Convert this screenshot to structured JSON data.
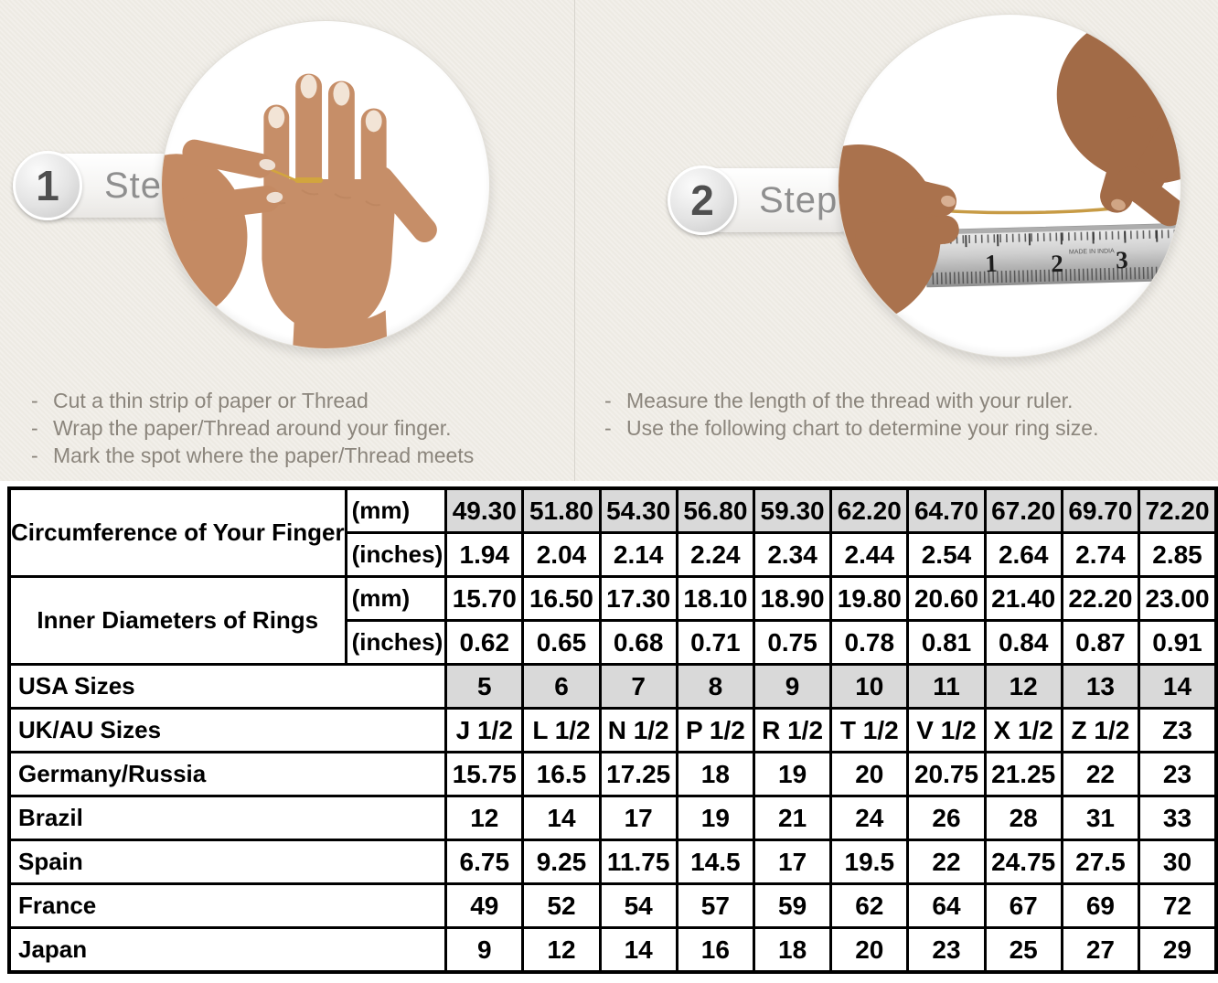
{
  "ui": {
    "bullet": "-"
  },
  "colors": {
    "panel_background": "#edeae3",
    "table_shaded_cell": "#d9d9d9",
    "thread_gold": "#c79b45",
    "table_border": "#000000",
    "instruction_text": "#8b857c"
  },
  "steps": [
    {
      "number": "1",
      "label": "Step",
      "instructions": [
        "Cut a thin strip of paper or Thread",
        "Wrap the paper/Thread around your finger.",
        "Mark the spot where the paper/Thread meets"
      ]
    },
    {
      "number": "2",
      "label": "Step",
      "instructions": [
        "Measure the length of the thread with your ruler.",
        "Use the following chart to determine your ring size."
      ],
      "ruler_numbers": [
        "1",
        "2",
        "3"
      ],
      "ruler_small_text": "MADE IN INDIA"
    }
  ],
  "table": {
    "groups": [
      {
        "label": "Circumference of Your Finger",
        "rows": [
          {
            "unit": "(mm)",
            "shaded": true,
            "values": [
              "49.30",
              "51.80",
              "54.30",
              "56.80",
              "59.30",
              "62.20",
              "64.70",
              "67.20",
              "69.70",
              "72.20"
            ]
          },
          {
            "unit": "(inches)",
            "shaded": false,
            "values": [
              "1.94",
              "2.04",
              "2.14",
              "2.24",
              "2.34",
              "2.44",
              "2.54",
              "2.64",
              "2.74",
              "2.85"
            ]
          }
        ]
      },
      {
        "label": "Inner Diameters of Rings",
        "rows": [
          {
            "unit": "(mm)",
            "shaded": false,
            "values": [
              "15.70",
              "16.50",
              "17.30",
              "18.10",
              "18.90",
              "19.80",
              "20.60",
              "21.40",
              "22.20",
              "23.00"
            ]
          },
          {
            "unit": "(inches)",
            "shaded": false,
            "values": [
              "0.62",
              "0.65",
              "0.68",
              "0.71",
              "0.75",
              "0.78",
              "0.81",
              "0.84",
              "0.87",
              "0.91"
            ]
          }
        ]
      }
    ],
    "size_rows": [
      {
        "label": "USA Sizes",
        "shaded": true,
        "values": [
          "5",
          "6",
          "7",
          "8",
          "9",
          "10",
          "11",
          "12",
          "13",
          "14"
        ]
      },
      {
        "label": "UK/AU Sizes",
        "shaded": false,
        "values": [
          "J 1/2",
          "L 1/2",
          "N 1/2",
          "P 1/2",
          "R 1/2",
          "T 1/2",
          "V 1/2",
          "X 1/2",
          "Z 1/2",
          "Z3"
        ]
      },
      {
        "label": "Germany/Russia",
        "shaded": false,
        "values": [
          "15.75",
          "16.5",
          "17.25",
          "18",
          "19",
          "20",
          "20.75",
          "21.25",
          "22",
          "23"
        ]
      },
      {
        "label": "Brazil",
        "shaded": false,
        "values": [
          "12",
          "14",
          "17",
          "19",
          "21",
          "24",
          "26",
          "28",
          "31",
          "33"
        ]
      },
      {
        "label": "Spain",
        "shaded": false,
        "values": [
          "6.75",
          "9.25",
          "11.75",
          "14.5",
          "17",
          "19.5",
          "22",
          "24.75",
          "27.5",
          "30"
        ]
      },
      {
        "label": "France",
        "shaded": false,
        "values": [
          "49",
          "52",
          "54",
          "57",
          "59",
          "62",
          "64",
          "67",
          "69",
          "72"
        ]
      },
      {
        "label": "Japan",
        "shaded": false,
        "values": [
          "9",
          "12",
          "14",
          "16",
          "18",
          "20",
          "23",
          "25",
          "27",
          "29"
        ]
      }
    ]
  }
}
